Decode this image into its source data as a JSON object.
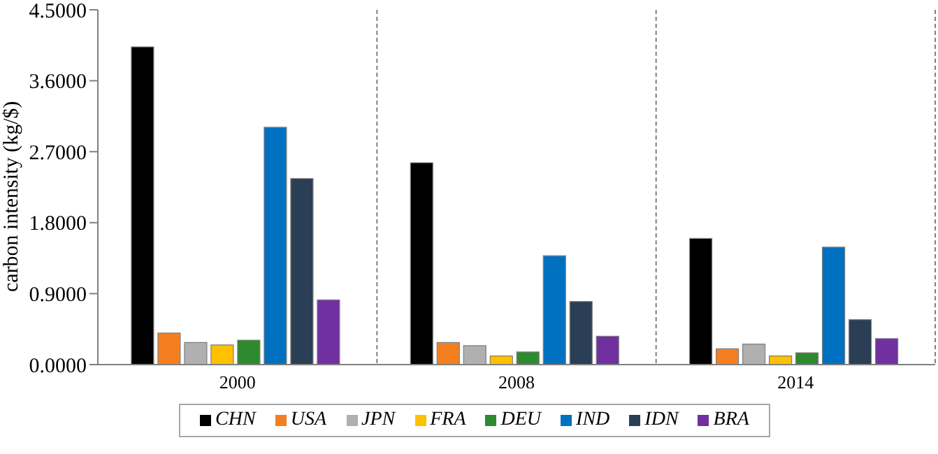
{
  "chart_data": {
    "type": "bar",
    "ylabel": "carbon intensity (kg/$)",
    "categories": [
      "2000",
      "2008",
      "2014"
    ],
    "series": [
      {
        "name": "CHN",
        "color": "#000000",
        "values": [
          4.03,
          2.56,
          1.6
        ]
      },
      {
        "name": "USA",
        "color": "#f47f20",
        "values": [
          0.4,
          0.28,
          0.2
        ]
      },
      {
        "name": "JPN",
        "color": "#b0b0b0",
        "values": [
          0.28,
          0.24,
          0.26
        ]
      },
      {
        "name": "FRA",
        "color": "#ffc000",
        "values": [
          0.25,
          0.11,
          0.11
        ]
      },
      {
        "name": "DEU",
        "color": "#2e8a2e",
        "values": [
          0.31,
          0.16,
          0.15
        ]
      },
      {
        "name": "IND",
        "color": "#0070c0",
        "values": [
          3.01,
          1.38,
          1.49
        ]
      },
      {
        "name": "IDN",
        "color": "#2a3e55",
        "values": [
          2.36,
          0.8,
          0.57
        ]
      },
      {
        "name": "BRA",
        "color": "#7030a0",
        "values": [
          0.82,
          0.36,
          0.33
        ]
      }
    ],
    "ylim": [
      0,
      4.5
    ],
    "yticks": [
      {
        "value": 0,
        "label": "0.0000"
      },
      {
        "value": 0.9,
        "label": "0.9000"
      },
      {
        "value": 1.8,
        "label": "1.8000"
      },
      {
        "value": 2.7,
        "label": "2.7000"
      },
      {
        "value": 3.6,
        "label": "3.6000"
      },
      {
        "value": 4.5,
        "label": "4.5000"
      }
    ],
    "grid": "x",
    "legend": "bottom"
  }
}
